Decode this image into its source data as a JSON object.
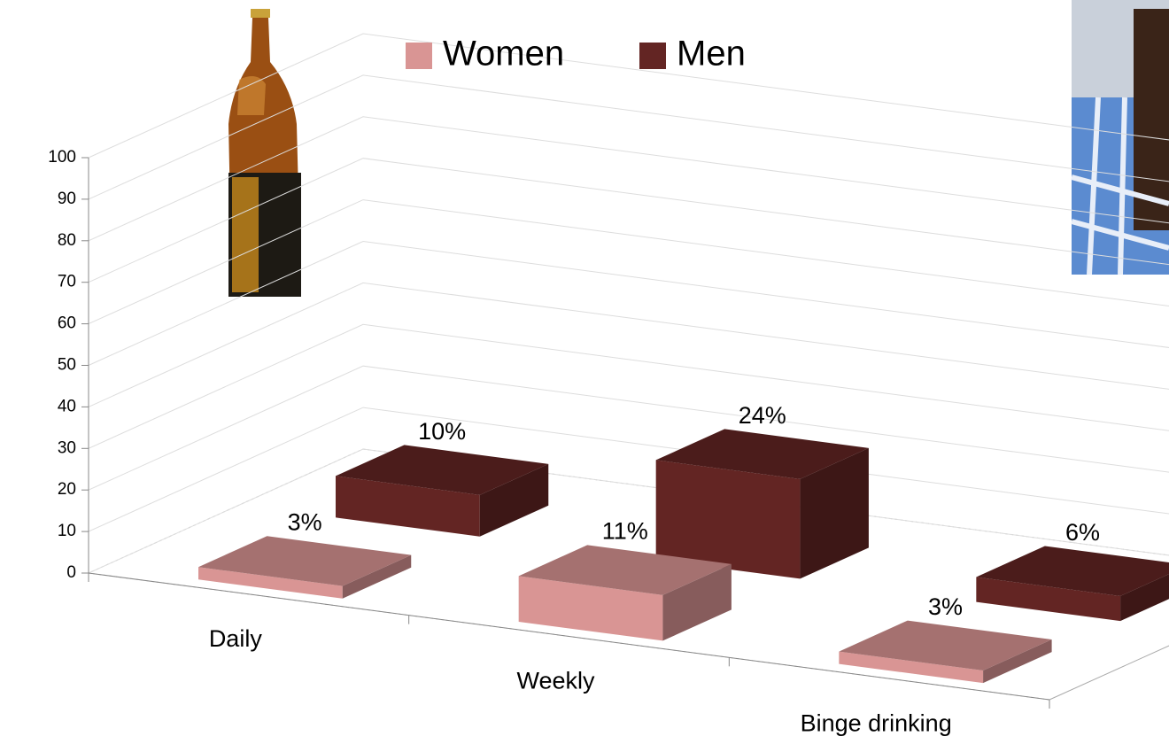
{
  "chart_data": {
    "type": "bar3d",
    "categories": [
      "Daily",
      "Weekly",
      "Binge drinking"
    ],
    "series": [
      {
        "name": "Women",
        "color": "#d99594",
        "values": [
          3,
          11,
          3
        ],
        "value_labels": [
          "3%",
          "11%",
          "3%"
        ]
      },
      {
        "name": "Men",
        "color": "#632523",
        "values": [
          10,
          24,
          6
        ],
        "value_labels": [
          "10%",
          "24%",
          "6%"
        ]
      }
    ],
    "ylim": [
      0,
      100
    ],
    "yticks": [
      0,
      10,
      20,
      30,
      40,
      50,
      60,
      70,
      80,
      90,
      100
    ],
    "grid": true,
    "legend": "top"
  }
}
